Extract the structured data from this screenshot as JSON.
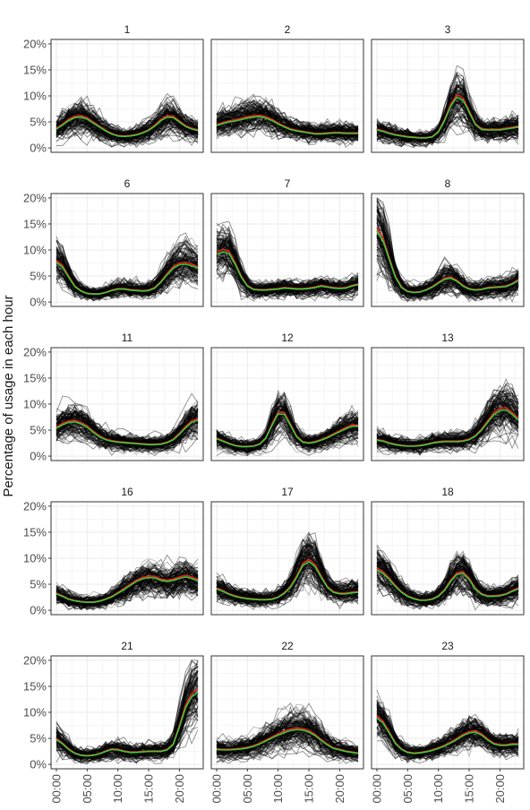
{
  "figure": {
    "ylabel": "Percentage of usage in each hour"
  },
  "chart_data": {
    "type": "line",
    "layout": "faceted small multiples, 5 rows x 3 columns, shared axes",
    "ylabel": "Percentage of usage in each hour",
    "xlabel": "",
    "x_ticks": [
      "00:00",
      "05:00",
      "10:00",
      "15:00",
      "20:00"
    ],
    "x_tick_hours": [
      0,
      5,
      10,
      15,
      20
    ],
    "x": [
      0,
      1,
      2,
      3,
      4,
      5,
      6,
      7,
      8,
      9,
      10,
      11,
      12,
      13,
      14,
      15,
      16,
      17,
      18,
      19,
      20,
      21,
      22,
      23
    ],
    "xlim": [
      0,
      23
    ],
    "y_ticks": [
      "0%",
      "5%",
      "10%",
      "15%",
      "20%"
    ],
    "y_tick_values": [
      0,
      5,
      10,
      15,
      20
    ],
    "ylim": [
      -0.5,
      20.5
    ],
    "grid": true,
    "legend": "none",
    "series_colors": {
      "individual": "#000000",
      "mean": "#e8231e",
      "median": "#3cc83c"
    },
    "background_series_count": 110,
    "facets": [
      {
        "label": "1",
        "mean": [
          3.8,
          4.6,
          5.5,
          6.1,
          6.2,
          5.8,
          5.0,
          4.2,
          3.4,
          2.8,
          2.4,
          2.3,
          2.4,
          2.6,
          3.0,
          3.5,
          4.4,
          5.5,
          6.2,
          6.1,
          5.2,
          4.3,
          3.8,
          3.5
        ]
      },
      {
        "label": "2",
        "mean": [
          4.5,
          4.9,
          5.2,
          5.4,
          5.7,
          6.0,
          6.2,
          6.3,
          6.0,
          5.5,
          4.8,
          4.2,
          3.7,
          3.4,
          3.2,
          3.0,
          2.8,
          2.8,
          2.9,
          3.0,
          3.0,
          2.9,
          2.9,
          2.9
        ]
      },
      {
        "label": "3",
        "mean": [
          3.6,
          3.3,
          2.9,
          2.6,
          2.4,
          2.2,
          2.1,
          2.0,
          2.0,
          2.2,
          3.2,
          5.5,
          8.4,
          10.2,
          9.6,
          7.2,
          4.7,
          3.7,
          3.6,
          3.6,
          3.6,
          3.8,
          4.0,
          4.2
        ]
      },
      {
        "label": "6",
        "mean": [
          8.0,
          7.0,
          5.0,
          3.1,
          2.2,
          1.7,
          1.6,
          1.6,
          1.9,
          2.3,
          2.6,
          2.6,
          2.4,
          2.3,
          2.2,
          2.3,
          2.8,
          4.0,
          5.5,
          6.8,
          7.5,
          7.6,
          7.3,
          6.8
        ]
      },
      {
        "label": "7",
        "mean": [
          9.6,
          10.1,
          9.8,
          7.6,
          5.0,
          3.2,
          2.5,
          2.4,
          2.4,
          2.5,
          2.6,
          2.8,
          2.7,
          2.6,
          2.6,
          2.7,
          2.9,
          3.2,
          3.0,
          2.8,
          2.7,
          2.8,
          3.2,
          3.5
        ]
      },
      {
        "label": "8",
        "mean": [
          14.3,
          12.3,
          8.6,
          5.0,
          2.9,
          2.1,
          1.9,
          2.0,
          2.4,
          3.0,
          3.8,
          4.6,
          4.8,
          4.2,
          3.2,
          2.6,
          2.4,
          2.5,
          2.8,
          2.9,
          3.0,
          3.1,
          3.6,
          4.3
        ]
      },
      {
        "label": "11",
        "mean": [
          5.6,
          6.3,
          6.8,
          6.9,
          6.5,
          5.8,
          4.8,
          3.9,
          3.3,
          3.0,
          2.8,
          2.7,
          2.6,
          2.5,
          2.4,
          2.3,
          2.3,
          2.4,
          2.7,
          3.3,
          4.4,
          5.7,
          6.8,
          7.2
        ]
      },
      {
        "label": "12",
        "mean": [
          3.5,
          3.0,
          2.5,
          2.1,
          1.9,
          1.9,
          2.0,
          2.4,
          3.6,
          6.2,
          8.5,
          8.4,
          6.2,
          3.9,
          2.8,
          2.6,
          2.8,
          3.2,
          3.7,
          4.3,
          4.9,
          5.5,
          6.0,
          6.0
        ]
      },
      {
        "label": "13",
        "mean": [
          3.2,
          3.0,
          2.6,
          2.3,
          2.1,
          2.0,
          2.0,
          2.1,
          2.3,
          2.6,
          2.8,
          2.9,
          2.9,
          2.9,
          3.0,
          3.3,
          4.0,
          5.2,
          6.8,
          8.3,
          9.2,
          9.3,
          8.4,
          7.3
        ]
      },
      {
        "label": "16",
        "mean": [
          3.3,
          2.8,
          2.2,
          1.9,
          1.7,
          1.6,
          1.6,
          1.8,
          2.2,
          2.7,
          3.4,
          4.2,
          5.0,
          5.8,
          6.3,
          6.6,
          6.5,
          6.0,
          5.8,
          6.0,
          6.4,
          6.7,
          6.4,
          5.9
        ]
      },
      {
        "label": "17",
        "mean": [
          4.3,
          3.8,
          3.2,
          2.8,
          2.5,
          2.3,
          2.2,
          2.1,
          2.1,
          2.2,
          2.6,
          3.4,
          4.6,
          6.6,
          9.0,
          9.8,
          8.8,
          6.6,
          4.6,
          3.6,
          3.3,
          3.3,
          3.5,
          3.6
        ]
      },
      {
        "label": "18",
        "mean": [
          8.1,
          7.4,
          6.2,
          4.8,
          3.6,
          2.8,
          2.3,
          2.0,
          2.0,
          2.2,
          2.8,
          4.0,
          5.8,
          7.2,
          7.4,
          6.2,
          4.3,
          3.2,
          2.8,
          2.8,
          2.9,
          3.2,
          3.8,
          4.3
        ]
      },
      {
        "label": "21",
        "mean": [
          5.0,
          4.1,
          3.0,
          2.2,
          1.8,
          1.7,
          1.8,
          2.1,
          2.6,
          3.0,
          2.9,
          2.6,
          2.4,
          2.4,
          2.5,
          2.6,
          2.6,
          2.6,
          2.9,
          4.0,
          7.5,
          11.4,
          13.6,
          14.5
        ]
      },
      {
        "label": "22",
        "mean": [
          3.0,
          2.9,
          2.9,
          3.0,
          3.1,
          3.3,
          3.6,
          4.1,
          4.7,
          5.3,
          5.9,
          6.4,
          6.8,
          7.0,
          6.9,
          6.5,
          5.8,
          4.8,
          3.9,
          3.2,
          2.9,
          2.6,
          2.4,
          2.2
        ]
      },
      {
        "label": "23",
        "mean": [
          9.3,
          8.3,
          6.3,
          4.2,
          3.0,
          2.4,
          2.2,
          2.3,
          2.5,
          2.8,
          3.2,
          3.7,
          4.3,
          5.0,
          5.8,
          6.3,
          6.5,
          5.9,
          4.9,
          4.1,
          3.8,
          3.8,
          4.0,
          4.0
        ]
      }
    ]
  }
}
